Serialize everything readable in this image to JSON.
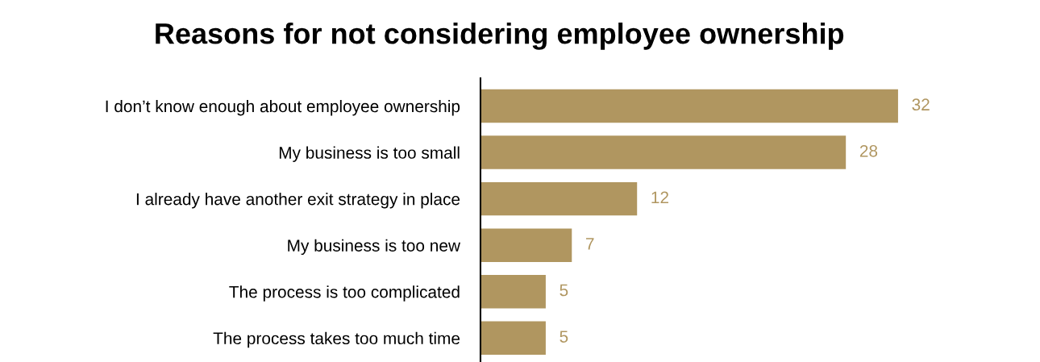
{
  "chart_data": {
    "type": "bar",
    "orientation": "horizontal",
    "title": "Reasons for not considering employee ownership",
    "categories": [
      "I don’t know enough about employee ownership",
      "My business is too small",
      "I already have another exit strategy in place",
      "My business is too new",
      "The process is too complicated",
      "The process takes too much time"
    ],
    "values": [
      32,
      28,
      12,
      7,
      5,
      5
    ],
    "color": "#b09660",
    "data_labels": true,
    "tick_labels": "y",
    "grid": false,
    "legend": false
  }
}
